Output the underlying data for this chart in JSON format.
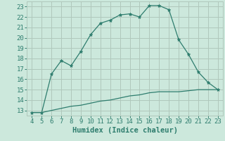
{
  "xlabel": "Humidex (Indice chaleur)",
  "x_main": [
    4,
    5,
    6,
    7,
    8,
    9,
    10,
    11,
    12,
    13,
    14,
    15,
    16,
    17,
    18,
    19,
    20,
    21,
    22,
    23
  ],
  "y_main": [
    12.8,
    12.8,
    16.5,
    17.8,
    17.3,
    18.7,
    20.3,
    21.4,
    21.7,
    22.2,
    22.3,
    22.0,
    23.1,
    23.1,
    22.7,
    19.8,
    18.4,
    16.7,
    15.7,
    15.0
  ],
  "x_lower": [
    4,
    5,
    6,
    7,
    8,
    9,
    10,
    11,
    12,
    13,
    14,
    15,
    16,
    17,
    18,
    19,
    20,
    21,
    22,
    23
  ],
  "y_lower": [
    12.8,
    12.8,
    13.0,
    13.2,
    13.4,
    13.5,
    13.7,
    13.9,
    14.0,
    14.2,
    14.4,
    14.5,
    14.7,
    14.8,
    14.8,
    14.8,
    14.9,
    15.0,
    15.0,
    15.0
  ],
  "line_color": "#2e7d6e",
  "bg_color": "#cce8dc",
  "grid_color_major": "#b0c8bc",
  "xlim": [
    3.5,
    23.5
  ],
  "ylim": [
    12.5,
    23.5
  ],
  "xticks": [
    4,
    5,
    6,
    7,
    8,
    9,
    10,
    11,
    12,
    13,
    14,
    15,
    16,
    17,
    18,
    19,
    20,
    21,
    22,
    23
  ],
  "yticks": [
    13,
    14,
    15,
    16,
    17,
    18,
    19,
    20,
    21,
    22,
    23
  ],
  "axis_fontsize": 7.5,
  "tick_fontsize": 6.5
}
